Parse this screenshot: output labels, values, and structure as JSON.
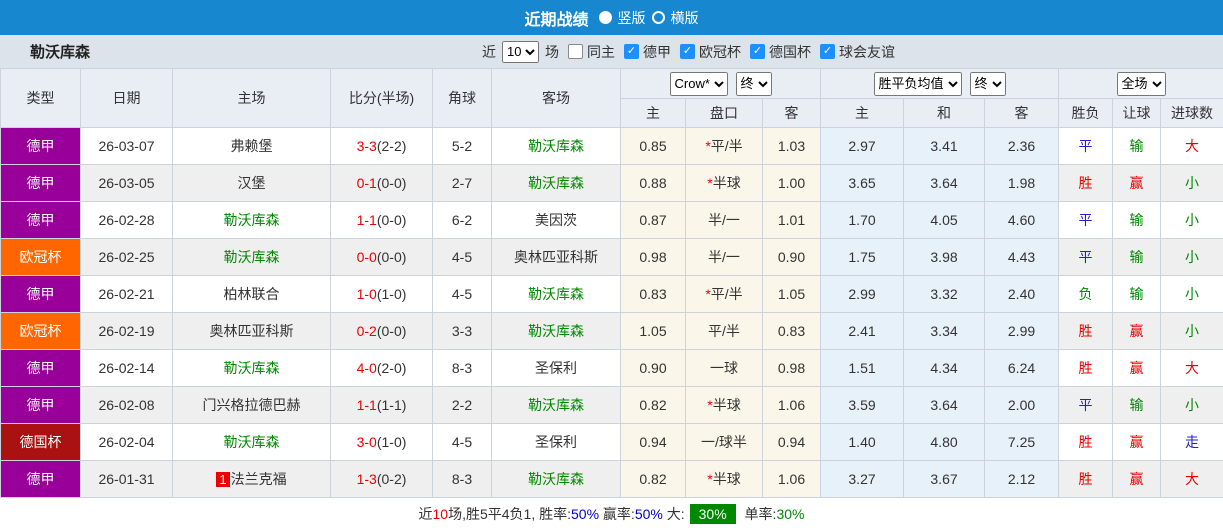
{
  "topbar": {
    "title": "近期战绩",
    "radio_vertical": "竖版",
    "radio_horizontal": "横版"
  },
  "filterbar": {
    "team": "勒沃库森",
    "recent_label": "近",
    "recent_select": "10",
    "games_label": "场",
    "same_home_label": "同主",
    "leagues": [
      "德甲",
      "欧冠杯",
      "德国杯",
      "球会友谊"
    ]
  },
  "header": {
    "col_type": "类型",
    "col_date": "日期",
    "col_home": "主场",
    "col_score": "比分(半场)",
    "col_corner": "角球",
    "col_away": "客场",
    "select_bookmaker": "Crow*",
    "select_final1": "终",
    "select_wdw": "胜平负均值",
    "select_final2": "终",
    "select_fulltime": "全场",
    "sub": [
      "主",
      "盘口",
      "客",
      "主",
      "和",
      "客",
      "胜负",
      "让球",
      "进球数"
    ]
  },
  "rows": [
    {
      "league": "德甲",
      "league_class": "purple",
      "date": "26-03-07",
      "home": "弗赖堡",
      "home_green": false,
      "home_badge": "",
      "score": "3-3",
      "half": "(2-2)",
      "corner": "5-2",
      "away": "勒沃库森",
      "away_green": true,
      "odds_home": "0.85",
      "star": true,
      "handicap": "平/半",
      "odds_away": "1.03",
      "avg_win": "2.97",
      "avg_draw": "3.41",
      "avg_lose": "2.36",
      "result": "平",
      "result_color": "blue",
      "spread": "输",
      "spread_color": "green",
      "goals": "大",
      "goals_color": "red"
    },
    {
      "league": "德甲",
      "league_class": "purple",
      "date": "26-03-05",
      "home": "汉堡",
      "home_green": false,
      "home_badge": "",
      "score": "0-1",
      "half": "(0-0)",
      "corner": "2-7",
      "away": "勒沃库森",
      "away_green": true,
      "odds_home": "0.88",
      "star": true,
      "handicap": "半球",
      "odds_away": "1.00",
      "avg_win": "3.65",
      "avg_draw": "3.64",
      "avg_lose": "1.98",
      "result": "胜",
      "result_color": "red",
      "spread": "赢",
      "spread_color": "red",
      "goals": "小",
      "goals_color": "green"
    },
    {
      "league": "德甲",
      "league_class": "purple",
      "date": "26-02-28",
      "home": "勒沃库森",
      "home_green": true,
      "home_badge": "",
      "score": "1-1",
      "half": "(0-0)",
      "corner": "6-2",
      "away": "美因茨",
      "away_green": false,
      "odds_home": "0.87",
      "star": false,
      "handicap": "半/一",
      "odds_away": "1.01",
      "avg_win": "1.70",
      "avg_draw": "4.05",
      "avg_lose": "4.60",
      "result": "平",
      "result_color": "blue",
      "spread": "输",
      "spread_color": "green",
      "goals": "小",
      "goals_color": "green"
    },
    {
      "league": "欧冠杯",
      "league_class": "orange",
      "date": "26-02-25",
      "home": "勒沃库森",
      "home_green": true,
      "home_badge": "",
      "score": "0-0",
      "half": "(0-0)",
      "corner": "4-5",
      "away": "奥林匹亚科斯",
      "away_green": false,
      "odds_home": "0.98",
      "star": false,
      "handicap": "半/一",
      "odds_away": "0.90",
      "avg_win": "1.75",
      "avg_draw": "3.98",
      "avg_lose": "4.43",
      "result": "平",
      "result_color": "blue",
      "spread": "输",
      "spread_color": "green",
      "goals": "小",
      "goals_color": "green"
    },
    {
      "league": "德甲",
      "league_class": "purple",
      "date": "26-02-21",
      "home": "柏林联合",
      "home_green": false,
      "home_badge": "",
      "score": "1-0",
      "half": "(1-0)",
      "corner": "4-5",
      "away": "勒沃库森",
      "away_green": true,
      "odds_home": "0.83",
      "star": true,
      "handicap": "平/半",
      "odds_away": "1.05",
      "avg_win": "2.99",
      "avg_draw": "3.32",
      "avg_lose": "2.40",
      "result": "负",
      "result_color": "green",
      "spread": "输",
      "spread_color": "green",
      "goals": "小",
      "goals_color": "green"
    },
    {
      "league": "欧冠杯",
      "league_class": "orange",
      "date": "26-02-19",
      "home": "奥林匹亚科斯",
      "home_green": false,
      "home_badge": "",
      "score": "0-2",
      "half": "(0-0)",
      "corner": "3-3",
      "away": "勒沃库森",
      "away_green": true,
      "odds_home": "1.05",
      "star": false,
      "handicap": "平/半",
      "odds_away": "0.83",
      "avg_win": "2.41",
      "avg_draw": "3.34",
      "avg_lose": "2.99",
      "result": "胜",
      "result_color": "red",
      "spread": "赢",
      "spread_color": "red",
      "goals": "小",
      "goals_color": "green"
    },
    {
      "league": "德甲",
      "league_class": "purple",
      "date": "26-02-14",
      "home": "勒沃库森",
      "home_green": true,
      "home_badge": "",
      "score": "4-0",
      "half": "(2-0)",
      "corner": "8-3",
      "away": "圣保利",
      "away_green": false,
      "odds_home": "0.90",
      "star": false,
      "handicap": "一球",
      "odds_away": "0.98",
      "avg_win": "1.51",
      "avg_draw": "4.34",
      "avg_lose": "6.24",
      "result": "胜",
      "result_color": "red",
      "spread": "赢",
      "spread_color": "red",
      "goals": "大",
      "goals_color": "red"
    },
    {
      "league": "德甲",
      "league_class": "purple",
      "date": "26-02-08",
      "home": "门兴格拉德巴赫",
      "home_green": false,
      "home_badge": "",
      "score": "1-1",
      "half": "(1-1)",
      "corner": "2-2",
      "away": "勒沃库森",
      "away_green": true,
      "odds_home": "0.82",
      "star": true,
      "handicap": "半球",
      "odds_away": "1.06",
      "avg_win": "3.59",
      "avg_draw": "3.64",
      "avg_lose": "2.00",
      "result": "平",
      "result_color": "blue",
      "spread": "输",
      "spread_color": "green",
      "goals": "小",
      "goals_color": "green"
    },
    {
      "league": "德国杯",
      "league_class": "darkred",
      "date": "26-02-04",
      "home": "勒沃库森",
      "home_green": true,
      "home_badge": "",
      "score": "3-0",
      "half": "(1-0)",
      "corner": "4-5",
      "away": "圣保利",
      "away_green": false,
      "odds_home": "0.94",
      "star": false,
      "handicap": "一/球半",
      "odds_away": "0.94",
      "avg_win": "1.40",
      "avg_draw": "4.80",
      "avg_lose": "7.25",
      "result": "胜",
      "result_color": "red",
      "spread": "赢",
      "spread_color": "red",
      "goals": "走",
      "goals_color": "blue"
    },
    {
      "league": "德甲",
      "league_class": "purple",
      "date": "26-01-31",
      "home": "法兰克福",
      "home_green": false,
      "home_badge": "1",
      "score": "1-3",
      "half": "(0-2)",
      "corner": "8-3",
      "away": "勒沃库森",
      "away_green": true,
      "odds_home": "0.82",
      "star": true,
      "handicap": "半球",
      "odds_away": "1.06",
      "avg_win": "3.27",
      "avg_draw": "3.67",
      "avg_lose": "2.12",
      "result": "胜",
      "result_color": "red",
      "spread": "赢",
      "spread_color": "red",
      "goals": "大",
      "goals_color": "red"
    }
  ],
  "summary": {
    "parts": [
      {
        "text": "近",
        "style": "plain"
      },
      {
        "text": "10",
        "style": "red"
      },
      {
        "text": "场,胜5平4负1, ",
        "style": "plain"
      },
      {
        "text": "胜率:",
        "style": "plain"
      },
      {
        "text": "50%",
        "style": "blue"
      },
      {
        "text": " 赢率:",
        "style": "plain"
      },
      {
        "text": "50%",
        "style": "blue"
      },
      {
        "text": " 大:",
        "style": "plain"
      },
      {
        "text": "30%",
        "style": "badge-green"
      },
      {
        "text": " 单率:",
        "style": "plain"
      },
      {
        "text": "30%",
        "style": "green"
      }
    ]
  },
  "colors": {
    "topbar_blue": "#1787d0",
    "checkbox_blue": "#1e8fff",
    "bundesliga_purple": "#990099",
    "champions_orange": "#ff6600",
    "cup_darkred": "#aa1111",
    "team_green": "#008800",
    "score_red": "#ee0000",
    "result_blue": "#2222cc",
    "handicap_col_bg": "#fbf6ea",
    "wdw_col_bg": "#e7f1f9",
    "header_bg": "#e9eef5",
    "filterbar_bg": "#dde3eb",
    "stripe_gray": "#efefef",
    "summary_badge_green": "#008800"
  }
}
